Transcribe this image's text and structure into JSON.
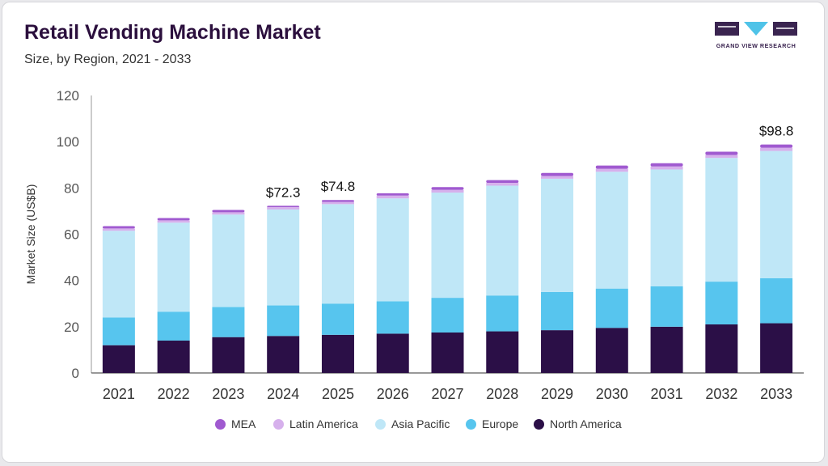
{
  "header": {
    "title": "Retail Vending Machine Market",
    "subtitle": "Size, by Region, 2021 - 2033"
  },
  "logo": {
    "text": "GRAND VIEW RESEARCH",
    "color": "#3a2450",
    "accent": "#4fc3e8"
  },
  "colors": {
    "MEA": "#a05ad0",
    "Latin America": "#d6b0ec",
    "Asia Pacific": "#bfe7f7",
    "Europe": "#57c5ee",
    "North America": "#2b0f47",
    "axis": "#333333",
    "grid_text": "#555555"
  },
  "chart_data": {
    "type": "bar",
    "stacked": true,
    "title": "Retail Vending Machine Market",
    "subtitle": "Size, by Region, 2021 - 2033",
    "xlabel": "",
    "ylabel": "Market Size (US$B)",
    "ylim": [
      0,
      120
    ],
    "yticks": [
      0,
      20,
      40,
      60,
      80,
      100,
      120
    ],
    "grid": false,
    "legend_position": "bottom",
    "categories": [
      "2021",
      "2022",
      "2023",
      "2024",
      "2025",
      "2026",
      "2027",
      "2028",
      "2029",
      "2030",
      "2031",
      "2032",
      "2033"
    ],
    "series": [
      {
        "name": "North America",
        "values": [
          12.0,
          14.0,
          15.5,
          16.0,
          16.5,
          17.0,
          17.5,
          18.0,
          18.5,
          19.5,
          20.0,
          21.0,
          21.5
        ]
      },
      {
        "name": "Europe",
        "values": [
          12.0,
          12.5,
          13.0,
          13.2,
          13.5,
          14.0,
          15.0,
          15.5,
          16.5,
          17.0,
          17.5,
          18.5,
          19.5
        ]
      },
      {
        "name": "Asia Pacific",
        "values": [
          37.5,
          38.5,
          40.0,
          41.5,
          43.0,
          44.5,
          45.5,
          47.5,
          49.0,
          50.5,
          50.5,
          53.5,
          55.0
        ]
      },
      {
        "name": "Latin America",
        "values": [
          1.0,
          1.0,
          1.0,
          1.0,
          1.0,
          1.2,
          1.2,
          1.2,
          1.2,
          1.3,
          1.3,
          1.3,
          1.4
        ]
      },
      {
        "name": "MEA",
        "values": [
          1.0,
          1.0,
          1.0,
          0.6,
          0.8,
          1.0,
          1.2,
          1.2,
          1.3,
          1.4,
          1.4,
          1.4,
          1.4
        ]
      }
    ],
    "annotations": [
      {
        "category": "2024",
        "text": "$72.3",
        "value": 72.3
      },
      {
        "category": "2025",
        "text": "$74.8",
        "value": 74.8
      },
      {
        "category": "2033",
        "text": "$98.8",
        "value": 98.8
      }
    ],
    "legend_order": [
      "MEA",
      "Latin America",
      "Asia Pacific",
      "Europe",
      "North America"
    ]
  }
}
